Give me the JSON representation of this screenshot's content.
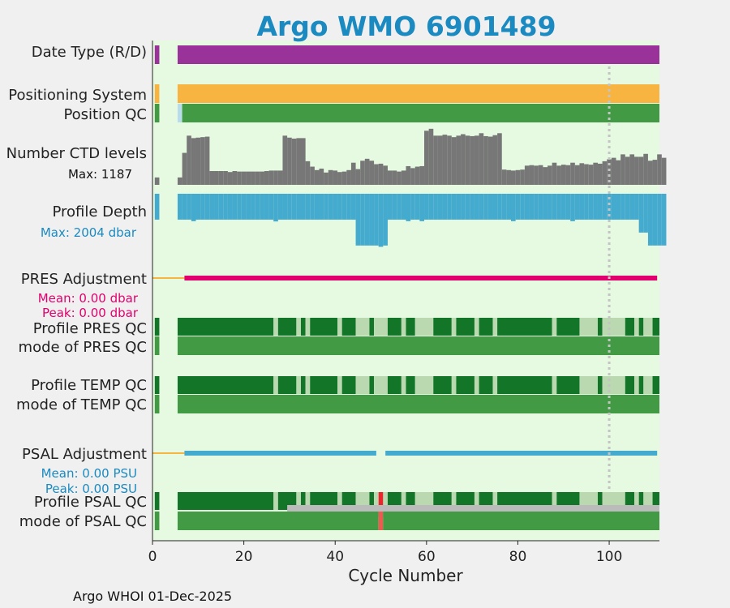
{
  "chart_data": {
    "type": "bar",
    "title": "Argo WMO 6901489",
    "xlabel": "Cycle Number",
    "xlim": [
      0,
      111
    ],
    "xticks": [
      0,
      20,
      40,
      60,
      80,
      100
    ],
    "marker_cycle": 100,
    "footer": "Argo WHOI 01-Dec-2025",
    "colors": {
      "background": "#e6f9e1",
      "title": "#1a8ac0",
      "purple": "#993399",
      "orange": "#f7b441",
      "lightblue": "#b9dcea",
      "green": "#439a44",
      "darkgreen": "#127527",
      "lightgreen": "#bbd9b0",
      "gray": "#777777",
      "lightgray": "#bbbbbb",
      "depth": "#44abcf",
      "pink": "#e2006e",
      "red": "#e8262c",
      "salmon": "#ea5c4f"
    },
    "rows": {
      "date_type": {
        "label": "Date Type (R/D)",
        "segments": [
          [
            0.5,
            1.5,
            "purple"
          ],
          [
            5.5,
            111,
            "purple"
          ]
        ]
      },
      "positioning": {
        "label": "Positioning System",
        "segments": [
          [
            0.5,
            1.5,
            "orange"
          ],
          [
            5.5,
            111,
            "orange"
          ]
        ]
      },
      "position_qc": {
        "label": "Position QC",
        "segments": [
          [
            0.5,
            1.5,
            "green"
          ],
          [
            5.5,
            6.5,
            "lightblue"
          ],
          [
            6.5,
            111,
            "green"
          ]
        ]
      },
      "ctd_levels": {
        "label": "Number CTD levels",
        "max_label": "Max: 1187",
        "max": 1187,
        "values": [
          150,
          0,
          0,
          0,
          0,
          150,
          650,
          1000,
          950,
          960,
          970,
          980,
          280,
          280,
          280,
          280,
          260,
          280,
          270,
          270,
          270,
          270,
          270,
          270,
          280,
          290,
          290,
          290,
          1000,
          960,
          940,
          950,
          950,
          480,
          370,
          300,
          330,
          250,
          300,
          290,
          260,
          270,
          300,
          450,
          320,
          490,
          530,
          490,
          420,
          430,
          390,
          290,
          290,
          270,
          290,
          380,
          340,
          370,
          380,
          1100,
          1140,
          1000,
          1000,
          1020,
          1000,
          970,
          1000,
          1030,
          1000,
          990,
          1000,
          1050,
          990,
          980,
          1010,
          1050,
          310,
          300,
          290,
          300,
          310,
          390,
          400,
          390,
          400,
          360,
          390,
          450,
          390,
          410,
          400,
          450,
          400,
          440,
          420,
          410,
          450,
          430,
          480,
          520,
          550,
          500,
          620,
          570,
          620,
          570,
          570,
          630,
          490,
          510,
          620,
          550
        ]
      },
      "profile_depth": {
        "label": "Profile Depth",
        "max_label": "Max: 2004 dbar",
        "max": 2004,
        "values": [
          1000,
          0,
          0,
          0,
          0,
          1000,
          1000,
          1000,
          1060,
          1000,
          1000,
          1000,
          1000,
          1000,
          1000,
          1000,
          1000,
          1000,
          1000,
          1000,
          1000,
          1000,
          1000,
          1000,
          1000,
          1000,
          1070,
          1000,
          1000,
          1000,
          1000,
          1000,
          1000,
          1000,
          1000,
          1000,
          1000,
          1000,
          1000,
          1000,
          1000,
          1000,
          1000,
          1000,
          2000,
          2000,
          2000,
          2000,
          2000,
          2050,
          2000,
          1000,
          1000,
          1000,
          1000,
          1060,
          1000,
          1000,
          1060,
          1000,
          1000,
          1000,
          1000,
          1000,
          1000,
          1000,
          1000,
          1000,
          1000,
          1000,
          1000,
          1000,
          1000,
          1000,
          1000,
          1000,
          1000,
          1000,
          1060,
          1000,
          1000,
          1000,
          1000,
          1000,
          1000,
          1000,
          1000,
          1000,
          1000,
          1000,
          1000,
          1060,
          1000,
          1000,
          1000,
          1000,
          1000,
          1000,
          1000,
          1000,
          1000,
          1000,
          1000,
          1000,
          1000,
          1000,
          1500,
          1500,
          2000,
          2000,
          2000,
          2000
        ]
      },
      "pres_adjustment": {
        "label": "PRES Adjustment",
        "mean_label": "Mean: 0.00 dbar",
        "peak_label": "Peak: 0.00 dbar",
        "segments": [
          [
            0,
            7,
            "orange"
          ],
          [
            7,
            110.5,
            "pink"
          ]
        ]
      },
      "profile_pres_qc": {
        "label": "Profile PRES QC",
        "segments": [
          [
            0.5,
            1.5,
            "darkgreen"
          ],
          [
            5.5,
            26.5,
            "darkgreen"
          ],
          [
            26.5,
            27.5,
            "lightgreen"
          ],
          [
            27.5,
            31.5,
            "darkgreen"
          ],
          [
            31.5,
            32.5,
            "lightgreen"
          ],
          [
            32.5,
            33.5,
            "darkgreen"
          ],
          [
            33.5,
            34.5,
            "lightgreen"
          ],
          [
            34.5,
            40.5,
            "darkgreen"
          ],
          [
            40.5,
            41.5,
            "lightgreen"
          ],
          [
            41.5,
            44.5,
            "darkgreen"
          ],
          [
            44.5,
            47.5,
            "lightgreen"
          ],
          [
            47.5,
            48.5,
            "darkgreen"
          ],
          [
            48.5,
            51.5,
            "lightgreen"
          ],
          [
            51.5,
            54.5,
            "darkgreen"
          ],
          [
            54.5,
            55.5,
            "lightgreen"
          ],
          [
            55.5,
            57.5,
            "darkgreen"
          ],
          [
            57.5,
            61.5,
            "lightgreen"
          ],
          [
            61.5,
            65.5,
            "darkgreen"
          ],
          [
            65.5,
            66.5,
            "lightgreen"
          ],
          [
            66.5,
            70.5,
            "darkgreen"
          ],
          [
            70.5,
            71.5,
            "lightgreen"
          ],
          [
            71.5,
            74.5,
            "darkgreen"
          ],
          [
            74.5,
            75.5,
            "lightgreen"
          ],
          [
            75.5,
            87.5,
            "darkgreen"
          ],
          [
            87.5,
            88.5,
            "lightgreen"
          ],
          [
            88.5,
            93.5,
            "darkgreen"
          ],
          [
            93.5,
            97.5,
            "lightgreen"
          ],
          [
            97.5,
            98.5,
            "darkgreen"
          ],
          [
            98.5,
            103.5,
            "lightgreen"
          ],
          [
            103.5,
            105.5,
            "darkgreen"
          ],
          [
            105.5,
            106.5,
            "lightgreen"
          ],
          [
            106.5,
            107.5,
            "darkgreen"
          ],
          [
            107.5,
            109.5,
            "lightgreen"
          ],
          [
            109.5,
            111,
            "darkgreen"
          ]
        ]
      },
      "mode_pres_qc": {
        "label": "mode of PRES QC",
        "segments": [
          [
            0.5,
            1.5,
            "green"
          ],
          [
            5.5,
            111,
            "green"
          ]
        ]
      },
      "profile_temp_qc": {
        "label": "Profile TEMP QC",
        "segments": [
          [
            0.5,
            1.5,
            "darkgreen"
          ],
          [
            5.5,
            26.5,
            "darkgreen"
          ],
          [
            26.5,
            27.5,
            "lightgreen"
          ],
          [
            27.5,
            31.5,
            "darkgreen"
          ],
          [
            31.5,
            32.5,
            "lightgreen"
          ],
          [
            32.5,
            33.5,
            "darkgreen"
          ],
          [
            33.5,
            34.5,
            "lightgreen"
          ],
          [
            34.5,
            40.5,
            "darkgreen"
          ],
          [
            40.5,
            41.5,
            "lightgreen"
          ],
          [
            41.5,
            44.5,
            "darkgreen"
          ],
          [
            44.5,
            47.5,
            "lightgreen"
          ],
          [
            47.5,
            48.5,
            "darkgreen"
          ],
          [
            48.5,
            51.5,
            "lightgreen"
          ],
          [
            51.5,
            54.5,
            "darkgreen"
          ],
          [
            54.5,
            55.5,
            "lightgreen"
          ],
          [
            55.5,
            57.5,
            "darkgreen"
          ],
          [
            57.5,
            61.5,
            "lightgreen"
          ],
          [
            61.5,
            65.5,
            "darkgreen"
          ],
          [
            65.5,
            66.5,
            "lightgreen"
          ],
          [
            66.5,
            70.5,
            "darkgreen"
          ],
          [
            70.5,
            71.5,
            "lightgreen"
          ],
          [
            71.5,
            74.5,
            "darkgreen"
          ],
          [
            74.5,
            75.5,
            "lightgreen"
          ],
          [
            75.5,
            87.5,
            "darkgreen"
          ],
          [
            87.5,
            88.5,
            "lightgreen"
          ],
          [
            88.5,
            93.5,
            "darkgreen"
          ],
          [
            93.5,
            97.5,
            "lightgreen"
          ],
          [
            97.5,
            98.5,
            "darkgreen"
          ],
          [
            98.5,
            103.5,
            "lightgreen"
          ],
          [
            103.5,
            105.5,
            "darkgreen"
          ],
          [
            105.5,
            106.5,
            "lightgreen"
          ],
          [
            106.5,
            107.5,
            "darkgreen"
          ],
          [
            107.5,
            109.5,
            "lightgreen"
          ],
          [
            109.5,
            111,
            "darkgreen"
          ]
        ]
      },
      "mode_temp_qc": {
        "label": "mode of TEMP QC",
        "segments": [
          [
            0.5,
            1.5,
            "green"
          ],
          [
            5.5,
            111,
            "green"
          ]
        ]
      },
      "psal_adjustment": {
        "label": "PSAL Adjustment",
        "mean_label": "Mean: 0.00 PSU",
        "peak_label": "Peak: 0.00 PSU",
        "segments": [
          [
            0,
            7,
            "orange"
          ],
          [
            7,
            49,
            "depth"
          ],
          [
            51,
            110.5,
            "depth"
          ]
        ]
      },
      "profile_psal_qc": {
        "label": "Profile PSAL QC",
        "segments": [
          [
            0.5,
            1.5,
            "darkgreen"
          ],
          [
            5.5,
            26.5,
            "darkgreen"
          ],
          [
            26.5,
            27.5,
            "lightgreen"
          ],
          [
            27.5,
            31.5,
            "darkgreen"
          ],
          [
            31.5,
            32.5,
            "lightgreen"
          ],
          [
            32.5,
            33.5,
            "darkgreen"
          ],
          [
            33.5,
            34.5,
            "lightgreen"
          ],
          [
            34.5,
            40.5,
            "darkgreen"
          ],
          [
            40.5,
            41.5,
            "lightgreen"
          ],
          [
            41.5,
            44.5,
            "darkgreen"
          ],
          [
            44.5,
            47.5,
            "lightgreen"
          ],
          [
            47.5,
            48.5,
            "darkgreen"
          ],
          [
            48.5,
            49.5,
            "lightgreen"
          ],
          [
            49.5,
            50.5,
            "red"
          ],
          [
            50.5,
            51.5,
            "lightgreen"
          ],
          [
            51.5,
            54.5,
            "darkgreen"
          ],
          [
            54.5,
            55.5,
            "lightgreen"
          ],
          [
            55.5,
            57.5,
            "darkgreen"
          ],
          [
            57.5,
            61.5,
            "lightgreen"
          ],
          [
            61.5,
            65.5,
            "darkgreen"
          ],
          [
            65.5,
            66.5,
            "lightgreen"
          ],
          [
            66.5,
            70.5,
            "darkgreen"
          ],
          [
            70.5,
            71.5,
            "lightgreen"
          ],
          [
            71.5,
            74.5,
            "darkgreen"
          ],
          [
            74.5,
            75.5,
            "lightgreen"
          ],
          [
            75.5,
            87.5,
            "darkgreen"
          ],
          [
            87.5,
            88.5,
            "lightgreen"
          ],
          [
            88.5,
            93.5,
            "darkgreen"
          ],
          [
            93.5,
            97.5,
            "lightgreen"
          ],
          [
            97.5,
            98.5,
            "darkgreen"
          ],
          [
            98.5,
            103.5,
            "lightgreen"
          ],
          [
            103.5,
            105.5,
            "darkgreen"
          ],
          [
            105.5,
            106.5,
            "lightgreen"
          ],
          [
            106.5,
            107.5,
            "darkgreen"
          ],
          [
            107.5,
            109.5,
            "lightgreen"
          ],
          [
            109.5,
            111,
            "darkgreen"
          ]
        ]
      },
      "psal_overlay": {
        "segments": [
          [
            29.5,
            111,
            "lightgray"
          ]
        ]
      },
      "mode_psal_qc": {
        "label": "mode of PSAL QC",
        "segments": [
          [
            0.5,
            1.5,
            "green"
          ],
          [
            5.5,
            49.5,
            "green"
          ],
          [
            49.5,
            50.5,
            "salmon"
          ],
          [
            50.5,
            111,
            "green"
          ]
        ]
      }
    }
  }
}
